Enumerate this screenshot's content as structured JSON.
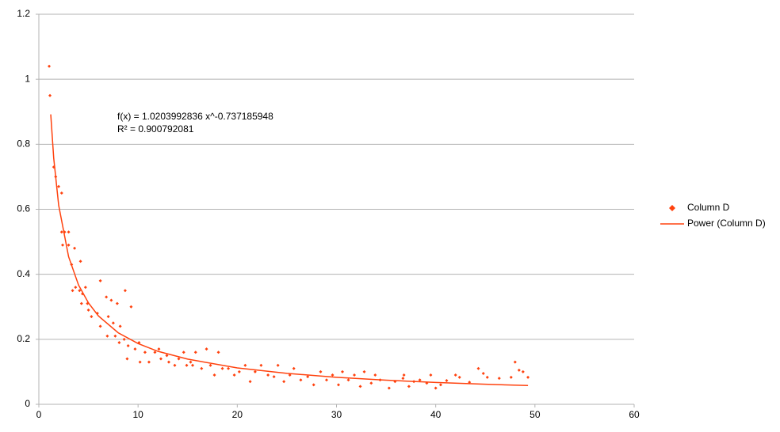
{
  "chart_data": {
    "type": "scatter",
    "annotations": [
      "f(x) = 1.0203992836 x^-0.737185948",
      "R² = 0.900792081"
    ],
    "xlim": [
      0,
      60
    ],
    "xticks": [
      0,
      10,
      20,
      30,
      40,
      50,
      60
    ],
    "ylim": [
      0,
      1.2
    ],
    "yticks": [
      0,
      0.2,
      0.4,
      0.6,
      0.8,
      1,
      1.2
    ],
    "grid": true,
    "legend": "right",
    "series": [
      {
        "name": "Column D",
        "type": "scatter",
        "color": "#ff420e",
        "x": [
          1.04,
          1.12,
          1.5,
          1.7,
          2.0,
          2.3,
          2.3,
          2.6,
          2.4,
          3.0,
          3.0,
          3.6,
          3.3,
          4.2,
          3.4,
          3.7,
          4.1,
          4.4,
          4.7,
          4.3,
          4.9,
          5.0,
          5.3,
          5.9,
          6.2,
          6.2,
          6.8,
          7.3,
          7.9,
          8.7,
          9.3,
          7.0,
          7.5,
          8.2,
          6.9,
          7.7,
          8.1,
          8.6,
          9.0,
          8.9,
          9.7,
          10.1,
          10.2,
          10.7,
          11.1,
          11.7,
          12.1,
          12.3,
          12.9,
          13.1,
          13.7,
          14.1,
          14.6,
          14.9,
          15.3,
          15.5,
          15.8,
          16.4,
          16.9,
          17.3,
          17.7,
          18.1,
          18.5,
          19.1,
          19.7,
          20.2,
          20.8,
          21.3,
          21.8,
          22.4,
          23.1,
          23.7,
          24.1,
          24.7,
          25.3,
          25.7,
          26.4,
          27.1,
          27.7,
          28.4,
          29.0,
          29.6,
          30.2,
          30.6,
          31.2,
          31.8,
          32.4,
          32.8,
          33.5,
          33.9,
          34.4,
          35.3,
          35.9,
          36.7,
          36.8,
          37.3,
          37.8,
          38.4,
          39.1,
          39.5,
          40.0,
          40.5,
          41.1,
          42.0,
          42.4,
          43.4,
          44.3,
          44.8,
          45.2,
          46.4,
          47.6,
          48.0,
          48.4,
          48.8,
          49.3
        ],
        "values": [
          1.04,
          0.95,
          0.73,
          0.7,
          0.67,
          0.65,
          0.53,
          0.53,
          0.49,
          0.53,
          0.49,
          0.48,
          0.43,
          0.44,
          0.35,
          0.36,
          0.35,
          0.34,
          0.36,
          0.31,
          0.31,
          0.29,
          0.27,
          0.28,
          0.24,
          0.38,
          0.33,
          0.32,
          0.31,
          0.35,
          0.3,
          0.27,
          0.25,
          0.24,
          0.21,
          0.21,
          0.19,
          0.2,
          0.18,
          0.14,
          0.17,
          0.19,
          0.13,
          0.16,
          0.13,
          0.16,
          0.17,
          0.14,
          0.15,
          0.13,
          0.12,
          0.14,
          0.16,
          0.12,
          0.13,
          0.12,
          0.16,
          0.11,
          0.17,
          0.12,
          0.09,
          0.16,
          0.11,
          0.11,
          0.09,
          0.1,
          0.12,
          0.07,
          0.1,
          0.12,
          0.09,
          0.085,
          0.12,
          0.07,
          0.09,
          0.11,
          0.075,
          0.085,
          0.06,
          0.1,
          0.075,
          0.09,
          0.06,
          0.1,
          0.075,
          0.09,
          0.055,
          0.1,
          0.065,
          0.09,
          0.075,
          0.05,
          0.07,
          0.08,
          0.09,
          0.055,
          0.07,
          0.075,
          0.065,
          0.09,
          0.05,
          0.06,
          0.073,
          0.09,
          0.083,
          0.068,
          0.11,
          0.095,
          0.083,
          0.08,
          0.083,
          0.13,
          0.105,
          0.1,
          0.083
        ]
      },
      {
        "name": "Power (Column D)",
        "type": "line",
        "color": "#ff420e",
        "x": [
          1.2,
          1.5,
          2,
          3,
          4,
          5,
          6,
          8,
          10,
          12,
          15,
          20,
          25,
          30,
          35,
          40,
          45,
          49.3
        ],
        "values": [
          0.892,
          0.757,
          0.612,
          0.454,
          0.367,
          0.312,
          0.272,
          0.22,
          0.187,
          0.163,
          0.139,
          0.112,
          0.0951,
          0.0832,
          0.0742,
          0.0673,
          0.0617,
          0.0577
        ]
      }
    ]
  }
}
